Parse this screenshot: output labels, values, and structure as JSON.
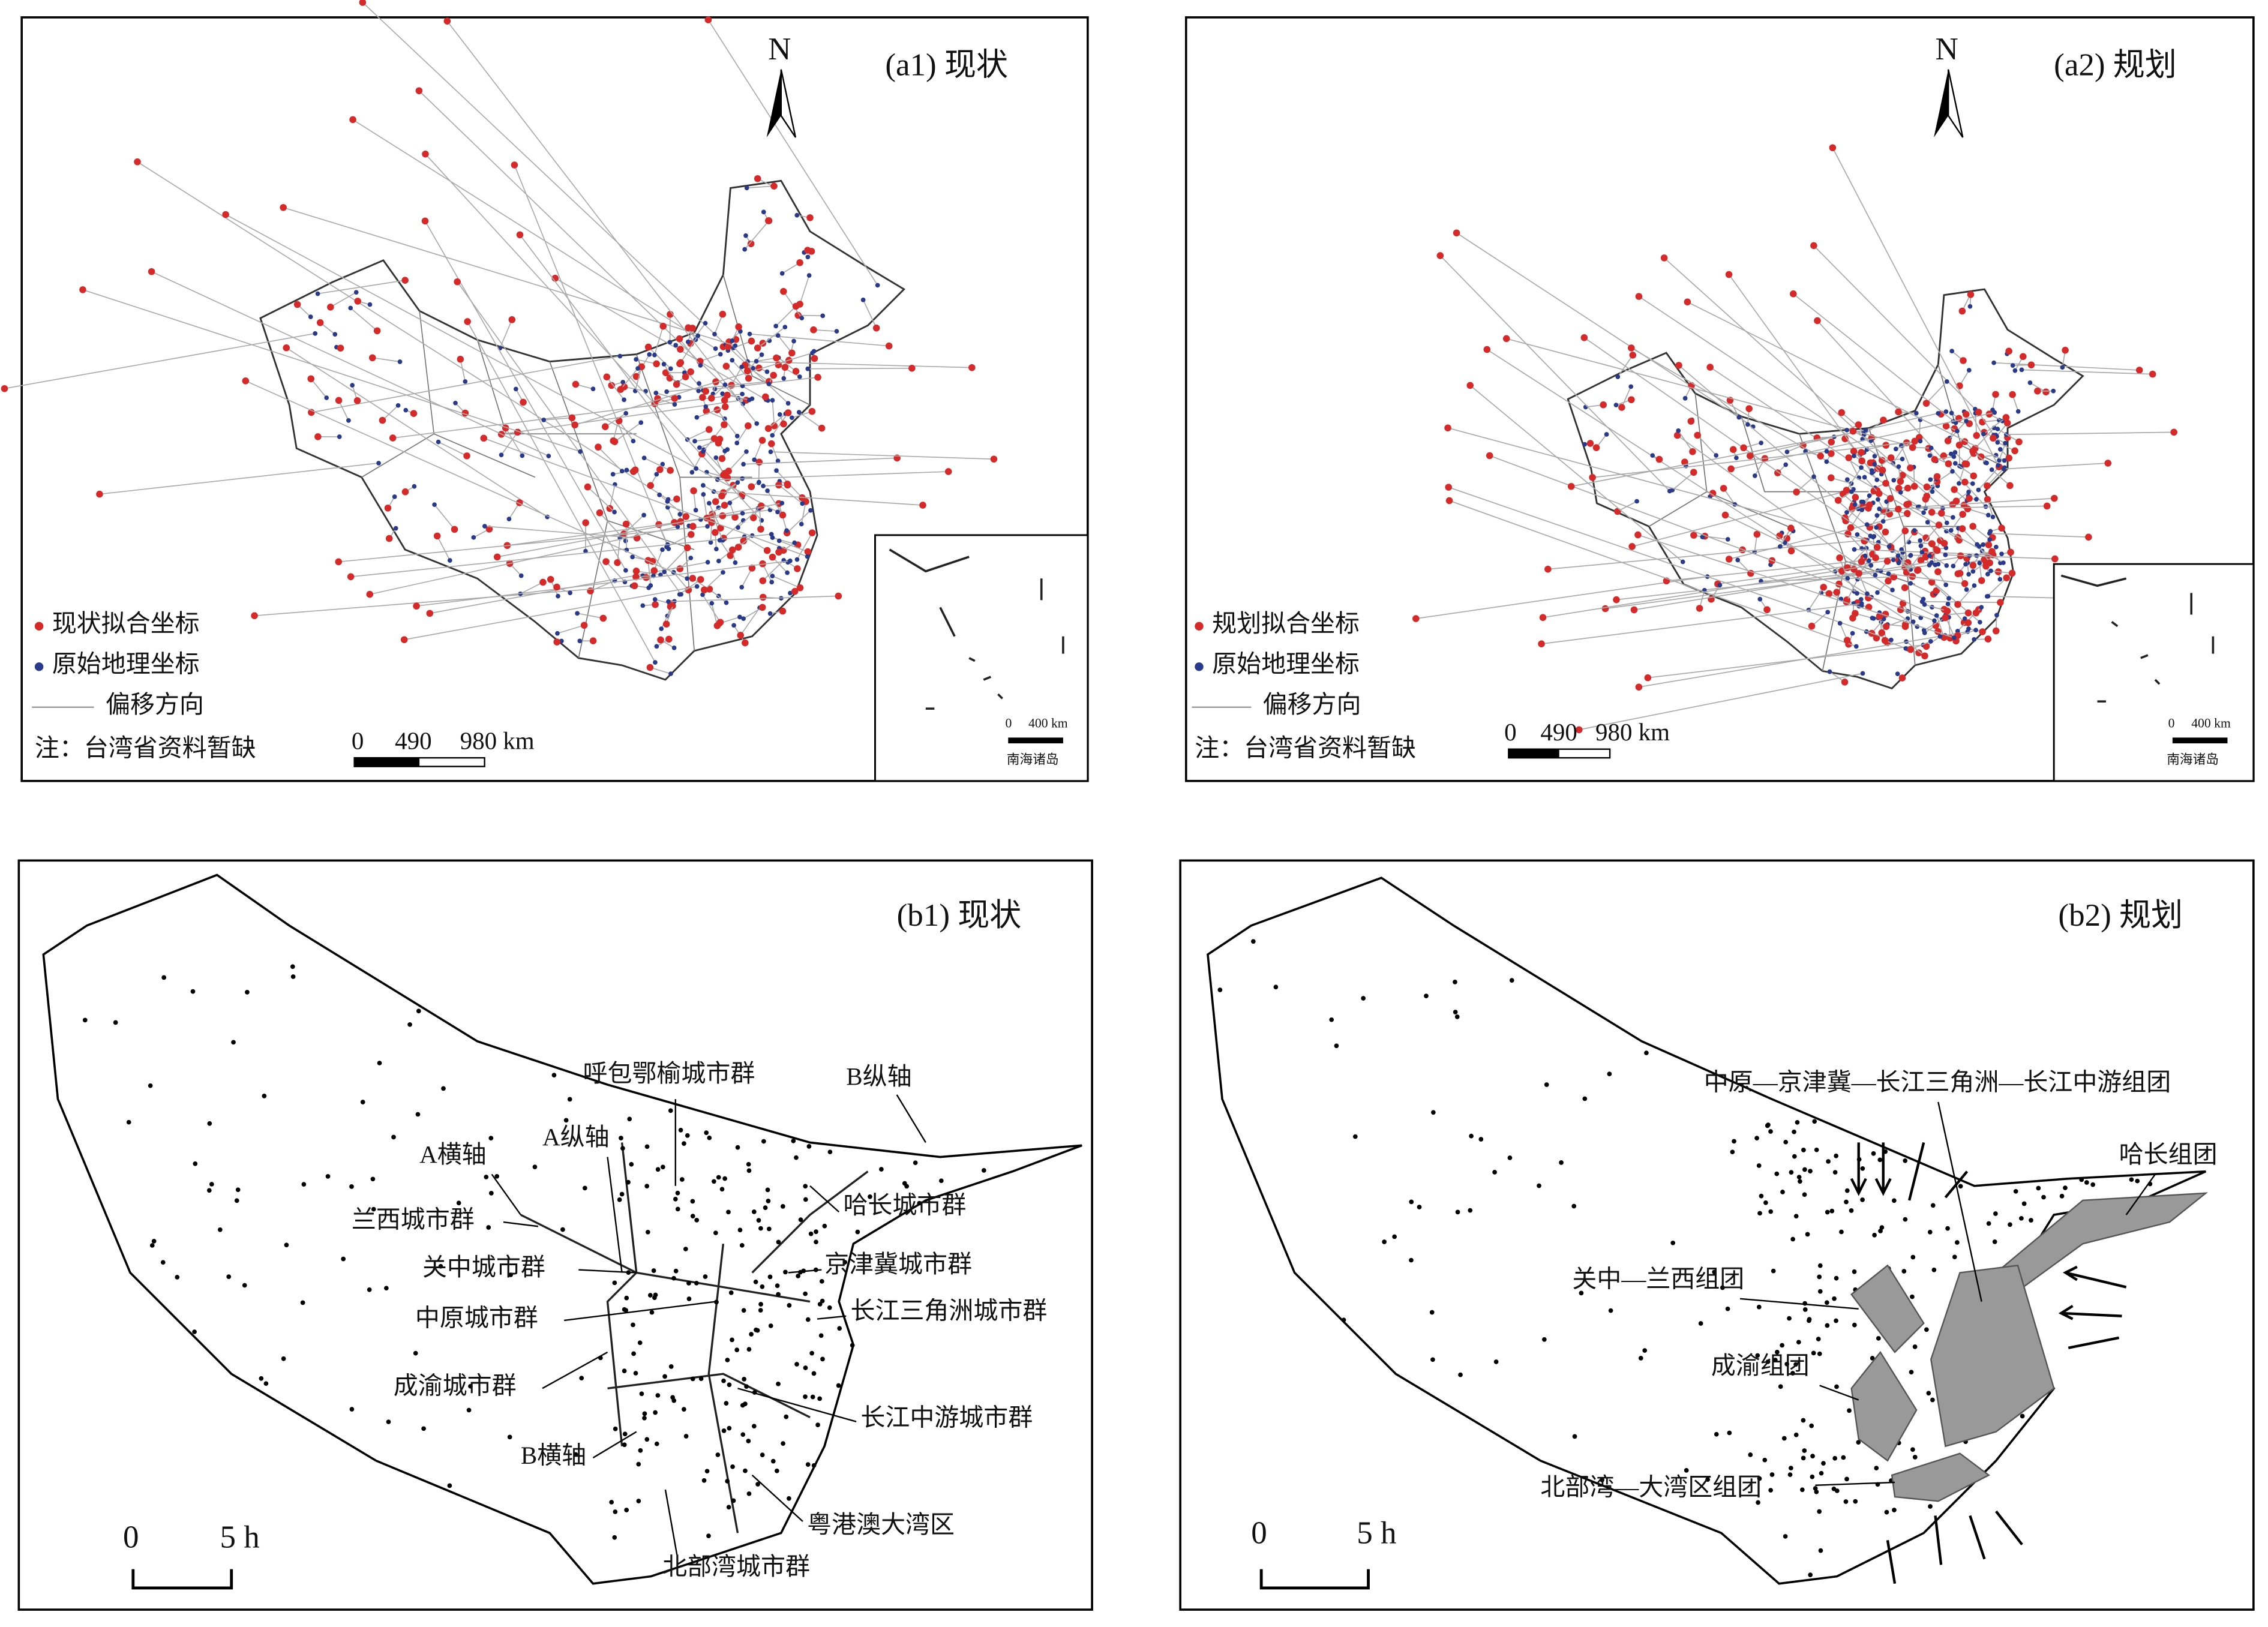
{
  "panels": [
    {
      "title": "(a1) 现状",
      "north": "N",
      "legend": [
        "现状拟合坐标",
        "原始地理坐标",
        "偏移方向"
      ],
      "note": "注：台湾省资料暂缺",
      "scale": [
        "0",
        "490",
        "980 km"
      ],
      "inset_scale": [
        "0",
        "400 km"
      ],
      "inset_label": "南海诸岛"
    },
    {
      "title": "(a2) 规划",
      "north": "N",
      "legend": [
        "规划拟合坐标",
        "原始地理坐标",
        "偏移方向"
      ],
      "note": "注：台湾省资料暂缺",
      "scale": [
        "0",
        "490",
        "980 km"
      ],
      "inset_scale": [
        "0",
        "400 km"
      ],
      "inset_label": "南海诸岛"
    },
    {
      "title": "(b1) 现状",
      "labels": [
        "呼包鄂榆城市群",
        "B纵轴",
        "A横轴",
        "A纵轴",
        "哈长城市群",
        "兰西城市群",
        "京津冀城市群",
        "关中城市群",
        "中原城市群",
        "长江三角洲城市群",
        "成渝城市群",
        "长江中游城市群",
        "B横轴",
        "粤港澳大湾区",
        "北部湾城市群"
      ],
      "scale": [
        "0",
        "5 h"
      ]
    },
    {
      "title": "(b2) 规划",
      "labels": [
        "中原—京津冀—长江三角洲—长江中游组团",
        "哈长组团",
        "关中—兰西组团",
        "成渝组团",
        "北部湾—大湾区组团"
      ],
      "scale": [
        "0",
        "5 h"
      ]
    }
  ]
}
